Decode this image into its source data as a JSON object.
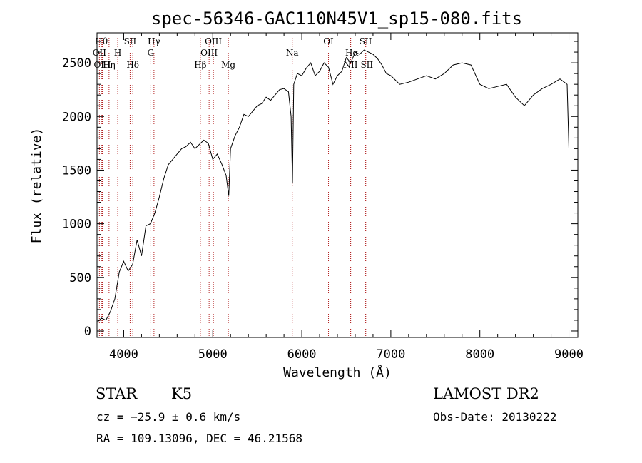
{
  "chart_data": {
    "type": "line",
    "title": "spec-56346-GAC110N45V1_sp15-080.fits",
    "xlabel": "Wavelength (Å)",
    "ylabel": "Flux (relative)",
    "xlim": [
      3700,
      9100
    ],
    "ylim": [
      -60,
      2780
    ],
    "grid": false,
    "xticks": [
      4000,
      5000,
      6000,
      7000,
      8000,
      9000
    ],
    "yticks": [
      0,
      500,
      1000,
      1500,
      2000,
      2500
    ],
    "line_color": "#000000",
    "marker_color": "#b22222",
    "series": [
      {
        "x": [
          3700,
          3750,
          3800,
          3850,
          3900,
          3950,
          4000,
          4050,
          4100,
          4150,
          4200,
          4250,
          4300,
          4350,
          4400,
          4450,
          4500,
          4550,
          4600,
          4650,
          4700,
          4750,
          4800,
          4850,
          4900,
          4950,
          5000,
          5050,
          5100,
          5150,
          5180,
          5200,
          5250,
          5300,
          5350,
          5400,
          5450,
          5500,
          5550,
          5600,
          5650,
          5700,
          5750,
          5800,
          5850,
          5880,
          5895,
          5910,
          5950,
          6000,
          6050,
          6100,
          6150,
          6200,
          6250,
          6300,
          6350,
          6400,
          6450,
          6500,
          6550,
          6600,
          6650,
          6700,
          6750,
          6800,
          6850,
          6900,
          6950,
          7000,
          7100,
          7200,
          7300,
          7400,
          7500,
          7600,
          7700,
          7800,
          7900,
          8000,
          8100,
          8200,
          8300,
          8400,
          8500,
          8600,
          8700,
          8800,
          8900,
          8980,
          9000
        ],
        "y": [
          80,
          120,
          100,
          180,
          300,
          550,
          650,
          560,
          620,
          850,
          700,
          980,
          1000,
          1100,
          1250,
          1420,
          1550,
          1600,
          1650,
          1700,
          1720,
          1760,
          1700,
          1740,
          1780,
          1750,
          1600,
          1650,
          1560,
          1450,
          1260,
          1700,
          1820,
          1900,
          2020,
          2000,
          2050,
          2100,
          2120,
          2180,
          2150,
          2200,
          2250,
          2260,
          2230,
          2000,
          1380,
          2300,
          2400,
          2380,
          2450,
          2500,
          2380,
          2420,
          2500,
          2460,
          2300,
          2380,
          2420,
          2550,
          2500,
          2600,
          2580,
          2620,
          2600,
          2580,
          2540,
          2480,
          2400,
          2380,
          2300,
          2320,
          2350,
          2380,
          2350,
          2400,
          2480,
          2500,
          2480,
          2300,
          2260,
          2280,
          2300,
          2180,
          2100,
          2200,
          2260,
          2300,
          2350,
          2300,
          1700
        ]
      }
    ],
    "spectral_lines": [
      {
        "wavelength": 3727,
        "label": "OII",
        "row": 2
      },
      {
        "wavelength": 3750,
        "label": "Hθ",
        "row": 1
      },
      {
        "wavelength": 3760,
        "label": "OIII",
        "row": 3
      },
      {
        "wavelength": 3835,
        "label": "Hη",
        "row": 3
      },
      {
        "wavelength": 3933,
        "label": "H",
        "row": 2
      },
      {
        "wavelength": 4072,
        "label": "SII",
        "row": 1
      },
      {
        "wavelength": 4102,
        "label": "Hδ",
        "row": 3
      },
      {
        "wavelength": 4304,
        "label": "G",
        "row": 2
      },
      {
        "wavelength": 4340,
        "label": "Hγ",
        "row": 1
      },
      {
        "wavelength": 4861,
        "label": "Hβ",
        "row": 3
      },
      {
        "wavelength": 4959,
        "label": "OIII",
        "row": 2
      },
      {
        "wavelength": 5007,
        "label": "OIII",
        "row": 1
      },
      {
        "wavelength": 5175,
        "label": "Mg",
        "row": 3
      },
      {
        "wavelength": 5893,
        "label": "Na",
        "row": 2
      },
      {
        "wavelength": 6300,
        "label": "OI",
        "row": 1
      },
      {
        "wavelength": 6548,
        "label": "NII",
        "row": 3
      },
      {
        "wavelength": 6563,
        "label": "Hα",
        "row": 2
      },
      {
        "wavelength": 6717,
        "label": "SII",
        "row": 1
      },
      {
        "wavelength": 6731,
        "label": "SII",
        "row": 3
      }
    ]
  },
  "info": {
    "object_class": "STAR",
    "subclass": "K5",
    "survey": "LAMOST DR2",
    "cz": "cz = −25.9 ± 0.6 km/s",
    "obs_date": "Obs-Date: 20130222",
    "coords": "RA = 109.13096, DEC =  46.21568"
  }
}
